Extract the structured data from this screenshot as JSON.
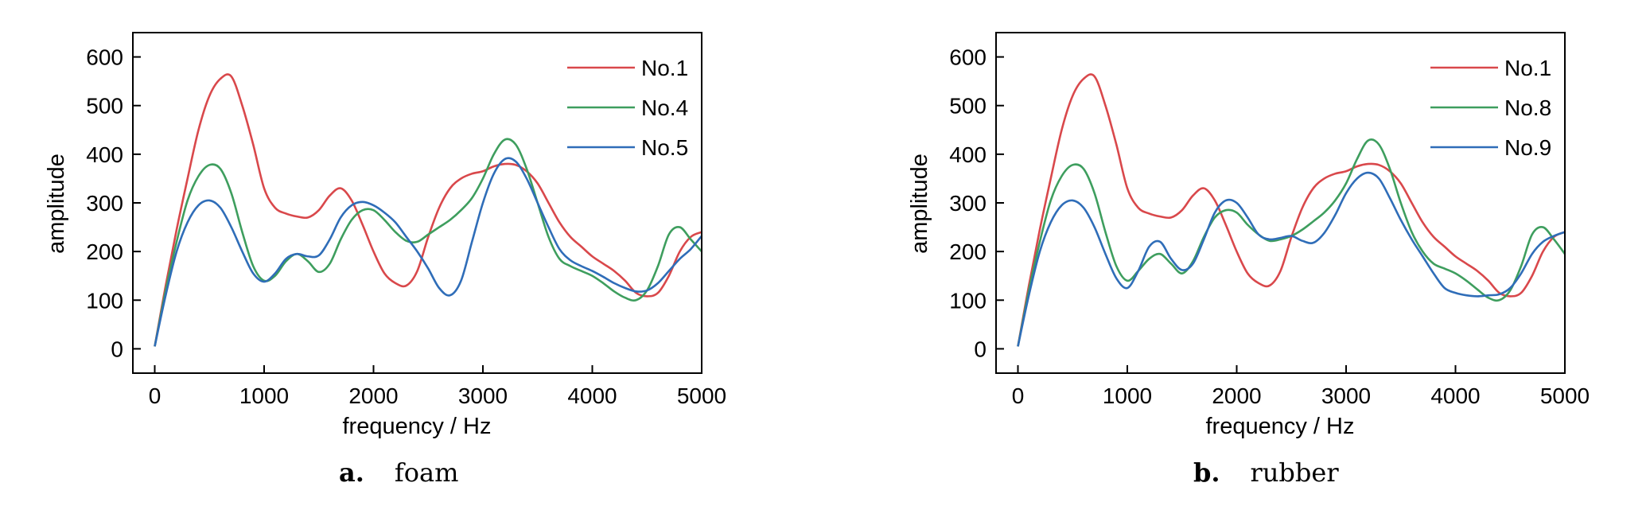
{
  "chart_data": [
    {
      "type": "line",
      "panel_letter": "a.",
      "panel_caption": "foam",
      "xlabel": "frequency / Hz",
      "ylabel": "amplitude",
      "xlim": [
        -200,
        5000
      ],
      "ylim": [
        -50,
        650
      ],
      "xticks": [
        0,
        1000,
        2000,
        3000,
        4000,
        5000
      ],
      "yticks": [
        0,
        100,
        200,
        300,
        400,
        500,
        600
      ],
      "grid": false,
      "legend_position": "top-right",
      "x": [
        0,
        100,
        200,
        300,
        400,
        500,
        600,
        700,
        800,
        900,
        1000,
        1100,
        1200,
        1300,
        1400,
        1500,
        1600,
        1700,
        1800,
        1900,
        2000,
        2100,
        2200,
        2300,
        2400,
        2500,
        2600,
        2700,
        2800,
        2900,
        3000,
        3100,
        3200,
        3300,
        3400,
        3500,
        3600,
        3700,
        3800,
        3900,
        4000,
        4100,
        4200,
        4300,
        4400,
        4500,
        4600,
        4700,
        4800,
        4900,
        5000
      ],
      "series": [
        {
          "name": "No.1",
          "color": "#d9484b",
          "values": [
            5,
            130,
            245,
            350,
            450,
            520,
            555,
            560,
            500,
            420,
            330,
            290,
            278,
            272,
            270,
            285,
            315,
            330,
            305,
            255,
            200,
            155,
            135,
            130,
            160,
            230,
            290,
            330,
            350,
            360,
            365,
            375,
            380,
            378,
            365,
            340,
            300,
            260,
            230,
            210,
            190,
            175,
            160,
            140,
            115,
            108,
            115,
            150,
            200,
            230,
            240
          ]
        },
        {
          "name": "No.4",
          "color": "#3e9e5e",
          "values": [
            5,
            120,
            220,
            305,
            355,
            378,
            370,
            320,
            240,
            170,
            140,
            150,
            180,
            195,
            180,
            158,
            175,
            225,
            265,
            285,
            285,
            265,
            240,
            222,
            220,
            235,
            250,
            265,
            285,
            310,
            350,
            400,
            430,
            420,
            370,
            300,
            230,
            185,
            170,
            160,
            150,
            135,
            118,
            105,
            100,
            120,
            170,
            235,
            250,
            225,
            200
          ]
        },
        {
          "name": "No.5",
          "color": "#2f6db8",
          "values": [
            5,
            110,
            200,
            260,
            295,
            305,
            290,
            250,
            200,
            155,
            138,
            155,
            185,
            195,
            190,
            192,
            225,
            270,
            295,
            302,
            295,
            280,
            260,
            230,
            200,
            165,
            125,
            110,
            140,
            220,
            300,
            360,
            390,
            385,
            350,
            300,
            250,
            205,
            182,
            170,
            160,
            148,
            135,
            125,
            118,
            120,
            135,
            160,
            185,
            205,
            232
          ]
        }
      ]
    },
    {
      "type": "line",
      "panel_letter": "b.",
      "panel_caption": "rubber",
      "xlabel": "frequency / Hz",
      "ylabel": "amplitude",
      "xlim": [
        -200,
        5000
      ],
      "ylim": [
        -50,
        650
      ],
      "xticks": [
        0,
        1000,
        2000,
        3000,
        4000,
        5000
      ],
      "yticks": [
        0,
        100,
        200,
        300,
        400,
        500,
        600
      ],
      "grid": false,
      "legend_position": "top-right",
      "x": [
        0,
        100,
        200,
        300,
        400,
        500,
        600,
        700,
        800,
        900,
        1000,
        1100,
        1200,
        1300,
        1400,
        1500,
        1600,
        1700,
        1800,
        1900,
        2000,
        2100,
        2200,
        2300,
        2400,
        2500,
        2600,
        2700,
        2800,
        2900,
        3000,
        3100,
        3200,
        3300,
        3400,
        3500,
        3600,
        3700,
        3800,
        3900,
        4000,
        4100,
        4200,
        4300,
        4400,
        4500,
        4600,
        4700,
        4800,
        4900,
        5000
      ],
      "series": [
        {
          "name": "No.1",
          "color": "#d9484b",
          "values": [
            5,
            130,
            245,
            350,
            450,
            520,
            555,
            560,
            500,
            420,
            330,
            290,
            278,
            272,
            270,
            285,
            315,
            330,
            305,
            255,
            200,
            155,
            135,
            130,
            160,
            230,
            290,
            330,
            350,
            360,
            365,
            375,
            380,
            378,
            365,
            340,
            300,
            260,
            230,
            210,
            190,
            175,
            160,
            140,
            115,
            108,
            115,
            150,
            200,
            230,
            240
          ]
        },
        {
          "name": "No.8",
          "color": "#3e9e5e",
          "values": [
            5,
            120,
            220,
            305,
            355,
            378,
            370,
            320,
            240,
            170,
            140,
            160,
            185,
            195,
            175,
            155,
            180,
            230,
            270,
            285,
            280,
            255,
            235,
            222,
            225,
            232,
            245,
            262,
            280,
            305,
            340,
            390,
            428,
            420,
            370,
            300,
            240,
            200,
            175,
            165,
            155,
            140,
            122,
            105,
            100,
            120,
            170,
            235,
            250,
            225,
            195
          ]
        },
        {
          "name": "No.9",
          "color": "#2f6db8",
          "values": [
            5,
            110,
            200,
            260,
            295,
            305,
            290,
            250,
            195,
            145,
            125,
            160,
            210,
            220,
            185,
            162,
            175,
            225,
            280,
            305,
            300,
            270,
            235,
            225,
            228,
            232,
            222,
            218,
            238,
            275,
            320,
            350,
            362,
            350,
            310,
            265,
            225,
            190,
            155,
            125,
            115,
            110,
            108,
            110,
            112,
            125,
            155,
            195,
            220,
            232,
            240
          ]
        }
      ]
    }
  ]
}
